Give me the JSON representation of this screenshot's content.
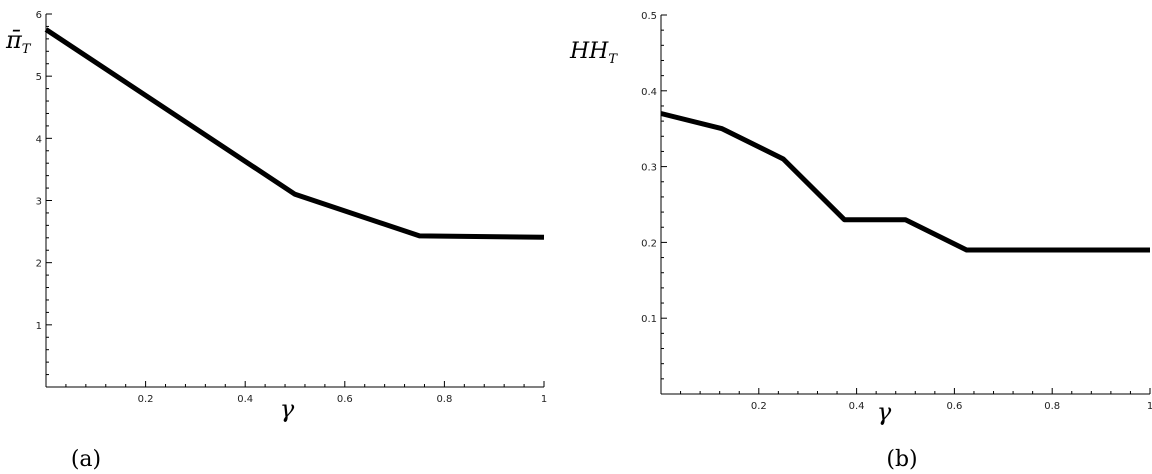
{
  "chart_data": [
    {
      "type": "line",
      "caption": "(a)",
      "xlabel": "γ",
      "ylabel": "π̄",
      "ylabel_sub": "T",
      "xlim": [
        0,
        1
      ],
      "ylim": [
        0,
        6
      ],
      "x_ticks": [
        0.2,
        0.4,
        0.6,
        0.8,
        1
      ],
      "x_tick_labels": [
        "0.2",
        "0.4",
        "0.6",
        "0.8",
        "1"
      ],
      "y_ticks": [
        1,
        2,
        3,
        4,
        5,
        6
      ],
      "y_tick_labels": [
        "1",
        "2",
        "3",
        "4",
        "5",
        "6"
      ],
      "grid": false,
      "series": [
        {
          "x": [
            0,
            0.5,
            0.75,
            1
          ],
          "y": [
            5.75,
            3.1,
            2.43,
            2.41
          ]
        }
      ]
    },
    {
      "type": "line",
      "caption": "(b)",
      "xlabel": "γ",
      "ylabel": "HH",
      "ylabel_sub": "T",
      "xlim": [
        0,
        1
      ],
      "ylim": [
        0,
        0.5
      ],
      "x_ticks": [
        0.2,
        0.4,
        0.6,
        0.8,
        1
      ],
      "x_tick_labels": [
        "0.2",
        "0.4",
        "0.6",
        "0.8",
        "1"
      ],
      "y_ticks": [
        0.1,
        0.2,
        0.3,
        0.4,
        0.5
      ],
      "y_tick_labels": [
        "0.1",
        "0.2",
        "0.3",
        "0.4",
        "0.5"
      ],
      "grid": false,
      "series": [
        {
          "x": [
            0,
            0.125,
            0.25,
            0.375,
            0.5,
            0.625,
            0.75,
            0.875,
            1
          ],
          "y": [
            0.37,
            0.35,
            0.31,
            0.23,
            0.23,
            0.19,
            0.19,
            0.19,
            0.19
          ]
        }
      ]
    }
  ]
}
